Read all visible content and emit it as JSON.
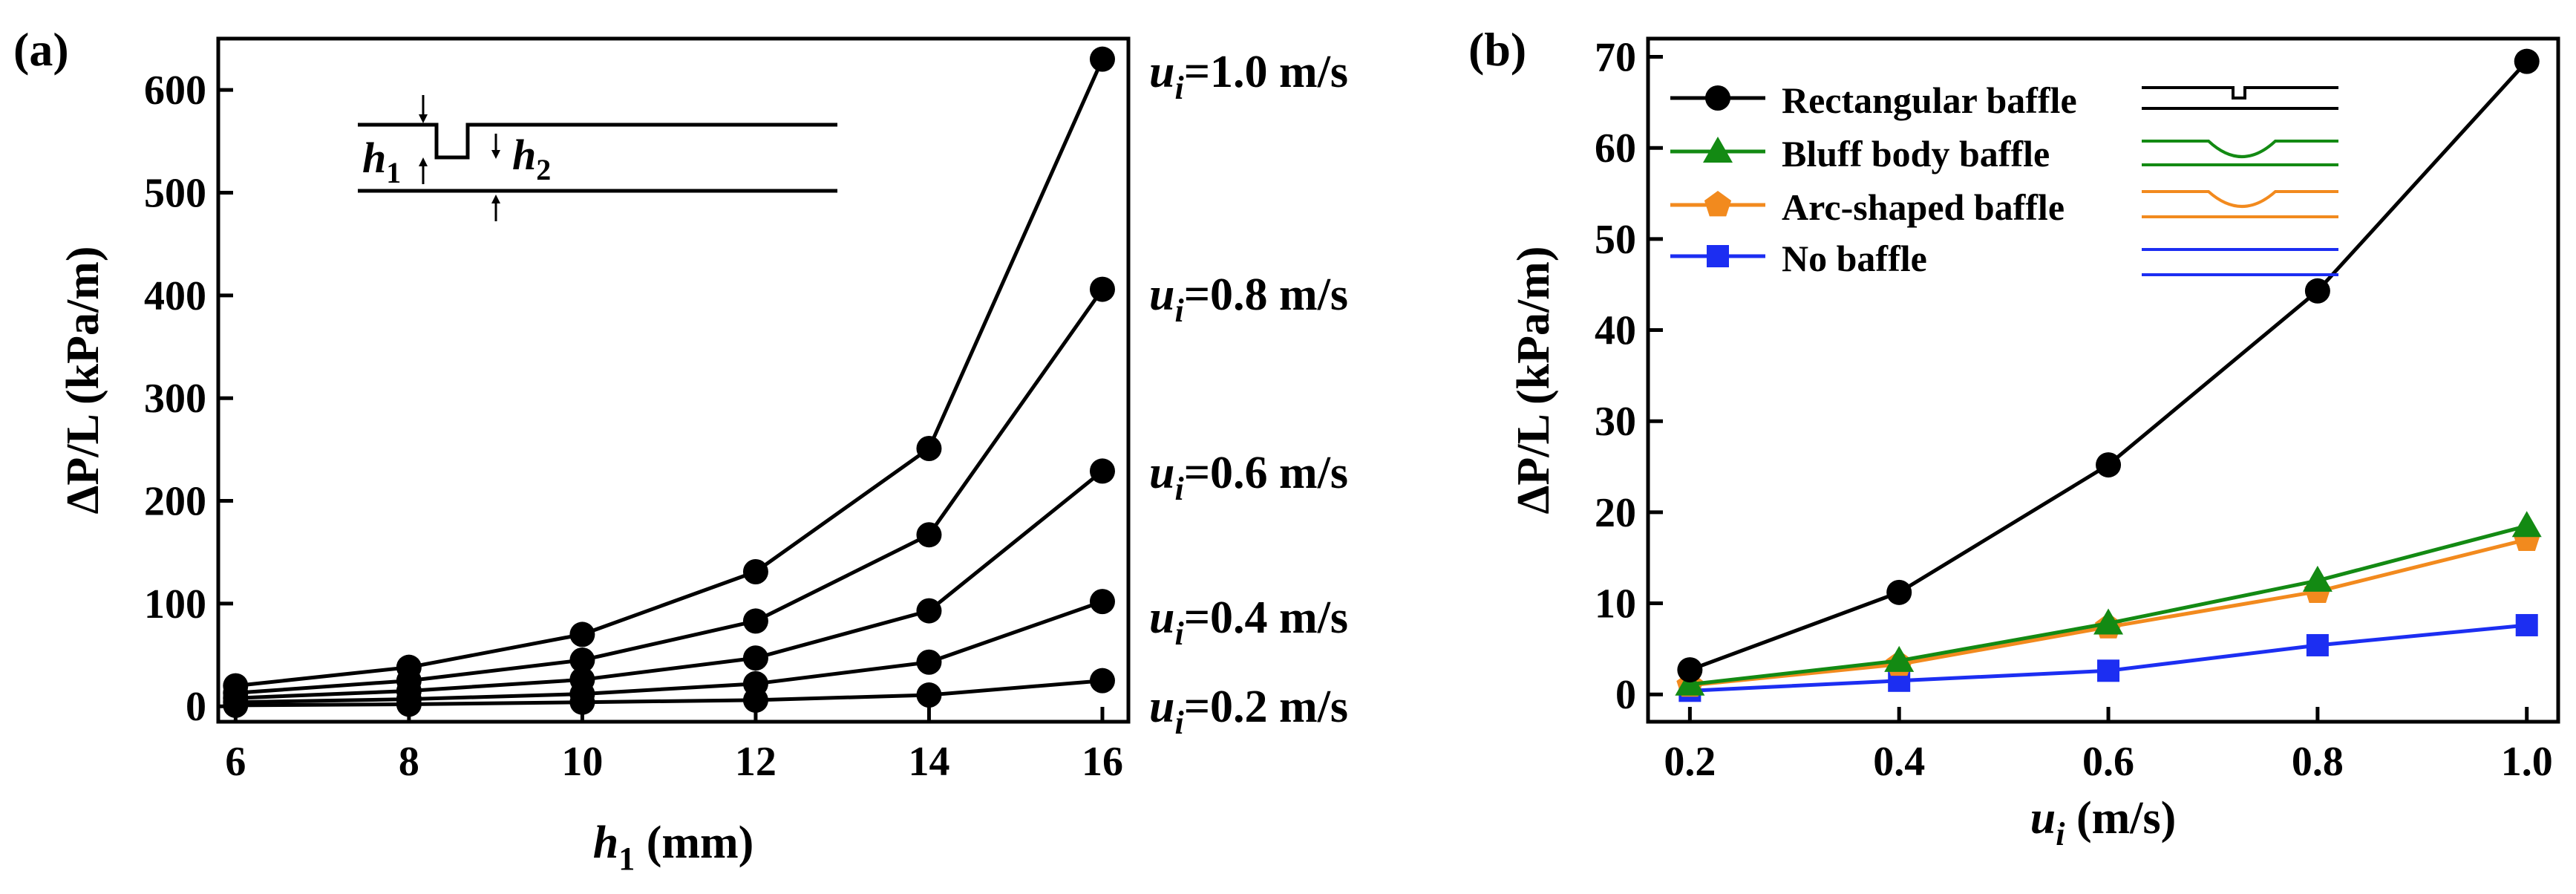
{
  "colors": {
    "rectangular": "#000000",
    "bluff": "#138a13",
    "arc": "#f28a1e",
    "none": "#1c2ef2"
  },
  "chart_data": [
    {
      "panel": "(a)",
      "type": "line",
      "xlabel": {
        "main": "h",
        "sub": "1",
        "rest": " (mm)"
      },
      "ylabel": "ΔP/L (kPa/m)",
      "x": [
        6,
        8,
        10,
        12,
        14,
        16
      ],
      "xlim": [
        5.8,
        16.3
      ],
      "ylim": [
        -15,
        650
      ],
      "xticks": [
        "6",
        "8",
        "10",
        "12",
        "14",
        "16"
      ],
      "yticks": [
        "0",
        "100",
        "200",
        "300",
        "400",
        "500",
        "600"
      ],
      "inset_labels": {
        "h1": "h",
        "h1_sub": "1",
        "h2": "h",
        "h2_sub": "2"
      },
      "series": [
        {
          "name": "u",
          "sub": "i",
          "rest": "=1.0 m/s",
          "values": [
            20,
            38,
            70,
            131,
            251,
            630
          ]
        },
        {
          "name": "u",
          "sub": "i",
          "rest": "=0.8 m/s",
          "values": [
            13,
            25,
            45,
            83,
            167,
            406
          ]
        },
        {
          "name": "u",
          "sub": "i",
          "rest": "=0.6 m/s",
          "values": [
            8,
            15,
            26,
            47,
            93,
            229
          ]
        },
        {
          "name": "u",
          "sub": "i",
          "rest": "=0.4 m/s",
          "values": [
            4,
            7,
            12,
            22,
            43,
            102
          ]
        },
        {
          "name": "u",
          "sub": "i",
          "rest": "=0.2 m/s",
          "values": [
            1,
            2,
            4,
            6,
            11,
            25
          ]
        }
      ]
    },
    {
      "panel": "(b)",
      "type": "line",
      "xlabel": {
        "main": "u",
        "sub": "i",
        "rest": " (m/s)"
      },
      "ylabel": "ΔP/L (kPa/m)",
      "x": [
        0.2,
        0.4,
        0.6,
        0.8,
        1.0
      ],
      "xlim": [
        0.16,
        1.03
      ],
      "ylim": [
        -3,
        72
      ],
      "xticks": [
        "0.2",
        "0.4",
        "0.6",
        "0.8",
        "1.0"
      ],
      "yticks": [
        "0",
        "10",
        "20",
        "30",
        "40",
        "50",
        "60",
        "70"
      ],
      "series": [
        {
          "name": "Rectangular baffle",
          "marker": "circle",
          "colorKey": "rectangular",
          "values": [
            2.7,
            11.2,
            25.2,
            44.3,
            69.5
          ]
        },
        {
          "name": "Bluff body baffle",
          "marker": "triangle",
          "colorKey": "bluff",
          "values": [
            1.1,
            3.7,
            7.8,
            12.5,
            18.5
          ]
        },
        {
          "name": "Arc-shaped baffle",
          "marker": "pentagon",
          "colorKey": "arc",
          "values": [
            1.0,
            3.3,
            7.4,
            11.3,
            17.0
          ]
        },
        {
          "name": "No baffle",
          "marker": "square",
          "colorKey": "none",
          "values": [
            0.4,
            1.5,
            2.6,
            5.4,
            7.6
          ]
        }
      ]
    }
  ]
}
